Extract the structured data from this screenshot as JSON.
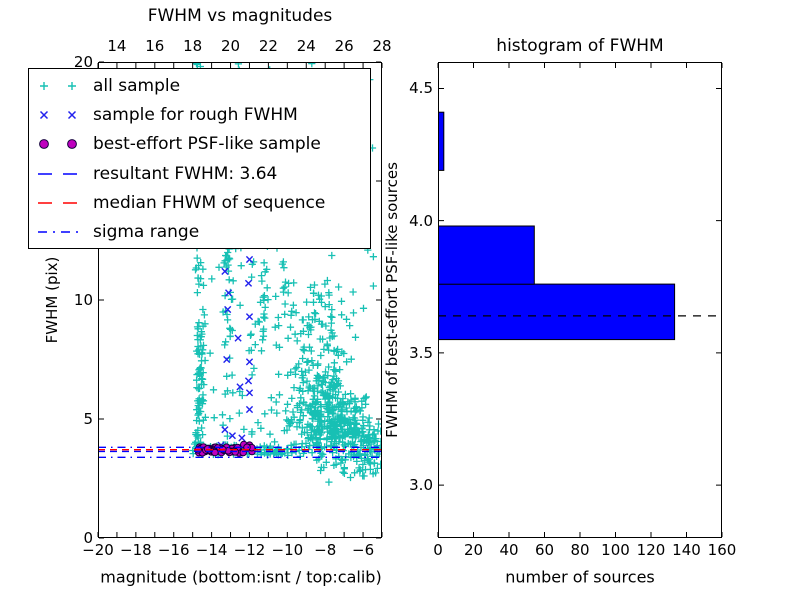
{
  "figure_title": "FWHM vs magnitudes / histogram of FWHM figure",
  "colors": {
    "background": "#ffffff",
    "all_sample": "#17c0b4",
    "rough_sample": "#2222ee",
    "psf_sample_fill": "#bf00bf",
    "psf_sample_edge": "#14003c",
    "resultant_line": "#0000ff",
    "median_line": "#ff0000",
    "sigma_line": "#0000ff",
    "hist_bar": "#0000ff",
    "hist_bar_edge": "#000000",
    "hist_marker_line": "#000000",
    "frame": "#000000"
  },
  "seed": 42,
  "chart_data": [
    {
      "type": "scatter",
      "title": "FWHM vs magnitudes",
      "xlabel": "magnitude (bottom:isnt / top:calib)",
      "ylabel": "FWHM (pix)",
      "xlim": [
        -20,
        -5
      ],
      "ylim": [
        0,
        20
      ],
      "top_axis_offset": 33,
      "x_ticks": [
        -20,
        -18,
        -16,
        -14,
        -12,
        -10,
        -8,
        -6
      ],
      "x_tick_labels": [
        "−20",
        "−18",
        "−16",
        "−14",
        "−12",
        "−10",
        "−8",
        "−6"
      ],
      "top_ticks": [
        14,
        16,
        18,
        20,
        22,
        24,
        26,
        28
      ],
      "top_tick_labels": [
        "14",
        "16",
        "18",
        "20",
        "22",
        "24",
        "26",
        "28"
      ],
      "y_ticks": [
        0,
        5,
        10,
        15,
        20
      ],
      "y_tick_labels": [
        "0",
        "5",
        "10",
        "15",
        "20"
      ],
      "grid": false,
      "legend_position": "upper left",
      "legend": [
        {
          "label": "all sample",
          "style": "plus",
          "color": "#17c0b4"
        },
        {
          "label": "sample for rough FWHM",
          "style": "x",
          "color": "#2222ee"
        },
        {
          "label": "best-effort PSF-like sample",
          "style": "circle",
          "color": "#bf00bf"
        },
        {
          "label": "resultant FWHM: 3.64",
          "style": "dashed",
          "color": "#0000ff"
        },
        {
          "label": "median FHWM of sequence",
          "style": "dashed",
          "color": "#ff0000"
        },
        {
          "label": "sigma range",
          "style": "dashdot",
          "color": "#0000ff"
        }
      ],
      "lines": [
        {
          "name": "resultant FWHM",
          "value": 3.64,
          "style": "dashed",
          "color": "#0000ff"
        },
        {
          "name": "median FHWM of sequence",
          "value": 3.71,
          "style": "dashed",
          "color": "#ff0000"
        },
        {
          "name": "sigma range upper",
          "value": 3.81,
          "style": "dashdot",
          "color": "#0000ff"
        },
        {
          "name": "sigma range lower",
          "value": 3.39,
          "style": "dashdot",
          "color": "#0000ff"
        }
      ],
      "series": [
        {
          "name": "all sample",
          "marker": "plus",
          "color": "#17c0b4",
          "clusters": [
            {
              "n": 85,
              "dist": "uniform",
              "x": [
                -14.85,
                -14.4
              ],
              "y": [
                3.5,
                20
              ]
            },
            {
              "n": 40,
              "dist": "uniform",
              "x": [
                -14.85,
                -14.45
              ],
              "y": [
                3.6,
                8.5
              ]
            },
            {
              "n": 20,
              "dist": "uniform",
              "x": [
                -14.4,
                -13.45
              ],
              "y": [
                3.7,
                18
              ]
            },
            {
              "n": 42,
              "dist": "uniform",
              "x": [
                -13.45,
                -12.85
              ],
              "y": [
                3.6,
                13
              ]
            },
            {
              "n": 12,
              "dist": "uniform",
              "x": [
                -13.4,
                -12.9
              ],
              "y": [
                13,
                20
              ]
            },
            {
              "n": 65,
              "dist": "uniform",
              "x": [
                -12.85,
                -10.9
              ],
              "y": [
                3.8,
                20
              ]
            },
            {
              "n": 18,
              "dist": "gauss",
              "cx": -11.45,
              "cy": 9.3,
              "sx": 0.25,
              "sy": 0.8
            },
            {
              "n": 45,
              "dist": "uniform",
              "x": [
                -10.9,
                -9.6
              ],
              "y": [
                3.5,
                19
              ]
            },
            {
              "n": 300,
              "dist": "gauss",
              "cx": -7.9,
              "cy": 4.9,
              "sx": 0.8,
              "sy": 0.95
            },
            {
              "n": 140,
              "dist": "gauss",
              "cx": -8.4,
              "cy": 7.3,
              "sx": 0.85,
              "sy": 1.6
            },
            {
              "n": 75,
              "dist": "gauss",
              "cx": -8.3,
              "cy": 12.0,
              "sx": 1.2,
              "sy": 2.4
            },
            {
              "n": 110,
              "dist": "gauss",
              "cx": -6.2,
              "cy": 4.2,
              "sx": 0.65,
              "sy": 0.75
            },
            {
              "n": 25,
              "dist": "uniform",
              "x": [
                -5.8,
                -5.05
              ],
              "y": [
                3.1,
                4.6
              ]
            },
            {
              "n": 16,
              "dist": "uniform",
              "x": [
                -12.6,
                -5.6
              ],
              "y": [
                18.7,
                20
              ]
            },
            {
              "n": 15,
              "dist": "uniform",
              "x": [
                -8.3,
                -5.15
              ],
              "y": [
                2.3,
                3.3
              ]
            },
            {
              "n": 45,
              "dist": "uniform",
              "x": [
                -15.0,
                -11.5
              ],
              "y": [
                3.5,
                3.95
              ]
            },
            {
              "n": 35,
              "dist": "uniform",
              "x": [
                -11.5,
                -9.7
              ],
              "y": [
                3.45,
                3.9
              ]
            }
          ]
        },
        {
          "name": "sample for rough FWHM",
          "marker": "x",
          "color": "#2222ee",
          "points": [
            [
              -13.3,
              11.2
            ],
            [
              -12.0,
              11.7
            ],
            [
              -12.05,
              10.7
            ],
            [
              -13.1,
              10.3
            ],
            [
              -12.0,
              9.3
            ],
            [
              -13.15,
              9.6
            ],
            [
              -12.6,
              8.4
            ],
            [
              -12.0,
              7.4
            ],
            [
              -13.2,
              7.5
            ],
            [
              -12.05,
              6.6
            ],
            [
              -12.5,
              6.35
            ],
            [
              -12.0,
              6.1
            ],
            [
              -12.0,
              5.4
            ],
            [
              -13.3,
              4.55
            ],
            [
              -12.9,
              4.3
            ],
            [
              -12.4,
              4.2
            ],
            [
              -13.5,
              3.9
            ],
            [
              -12.15,
              3.85
            ],
            [
              -14.0,
              3.7
            ],
            [
              -12.7,
              3.68
            ],
            [
              -14.35,
              3.72
            ],
            [
              -11.9,
              3.75
            ]
          ]
        },
        {
          "name": "best-effort PSF-like sample",
          "marker": "circle",
          "color": "#bf00bf",
          "edge_color": "#14003c",
          "clusters": [
            {
              "n": 58,
              "dist": "uniform",
              "x": [
                -14.75,
                -11.8
              ],
              "y": [
                3.57,
                3.82
              ]
            }
          ],
          "points": [
            [
              -12.3,
              3.93
            ],
            [
              -12.0,
              3.9
            ],
            [
              -11.85,
              3.75
            ]
          ]
        }
      ]
    },
    {
      "type": "bar-horizontal",
      "title": "histogram of FWHM",
      "xlabel": "number of sources",
      "ylabel": "FWHM of best-effort PSF-like sources",
      "xlim": [
        0,
        160
      ],
      "ylim": [
        2.8,
        4.6
      ],
      "x_ticks": [
        0,
        20,
        40,
        60,
        80,
        100,
        120,
        140,
        160
      ],
      "x_tick_labels": [
        "0",
        "20",
        "40",
        "60",
        "80",
        "100",
        "120",
        "140",
        "160"
      ],
      "y_ticks": [
        3.0,
        3.5,
        4.0,
        4.5
      ],
      "y_tick_labels": [
        "3.0",
        "3.5",
        "4.0",
        "4.5"
      ],
      "grid": false,
      "bin_edges": [
        3.55,
        3.76,
        3.98,
        4.19,
        4.41
      ],
      "counts": [
        133,
        54,
        0,
        3
      ],
      "marker_line": {
        "name": "resultant FWHM",
        "value": 3.64,
        "style": "dashed",
        "color": "#000000"
      }
    }
  ]
}
